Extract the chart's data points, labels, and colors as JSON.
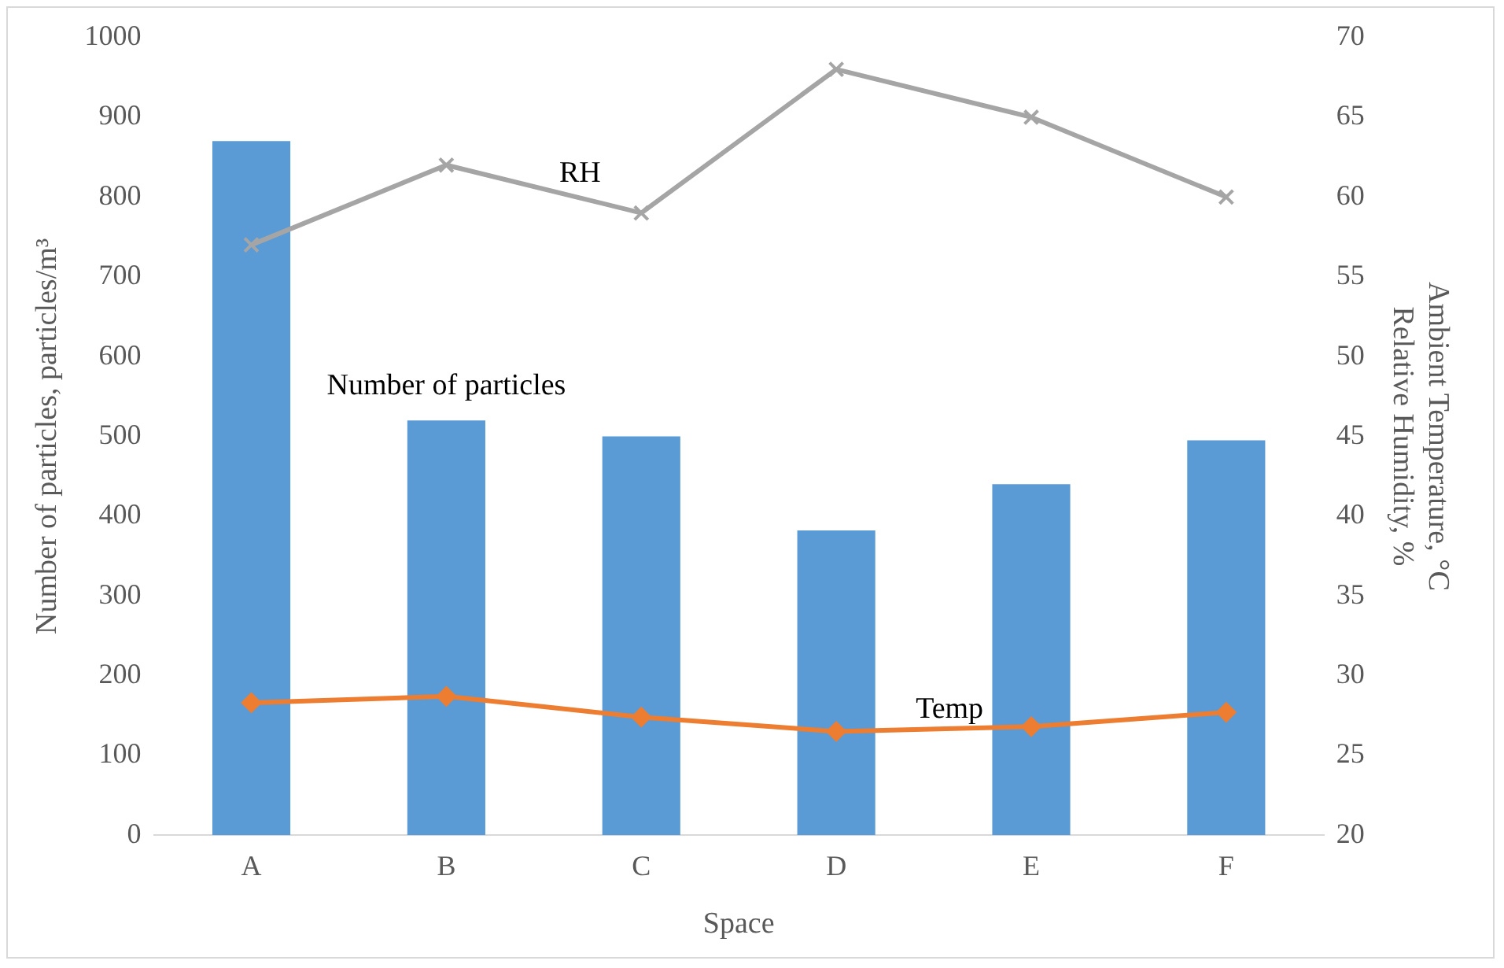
{
  "chart_data": {
    "type": "bar",
    "xlabel": "Space",
    "ylabel": "Number of particles, particles/m³",
    "y2label": "Ambient Temperature, °C\nRelative Humidity, %",
    "categories": [
      "A",
      "B",
      "C",
      "D",
      "E",
      "F"
    ],
    "series": [
      {
        "name": "Number of particles",
        "color": "#5b9bd5",
        "values": [
          870,
          520,
          500,
          382,
          440,
          495
        ]
      },
      {
        "name": "Temp",
        "type": "line",
        "axis": "y2",
        "color": "#ed7d31",
        "marker": "diamond",
        "values": [
          28.3,
          28.7,
          27.4,
          26.5,
          26.8,
          27.7
        ]
      },
      {
        "name": "RH",
        "type": "line",
        "axis": "y2",
        "color": "#a5a5a5",
        "marker": "cross",
        "values": [
          57,
          62,
          59,
          68,
          65,
          60
        ]
      }
    ],
    "ylim": [
      0,
      1000
    ],
    "yticks": [
      0,
      100,
      200,
      300,
      400,
      500,
      600,
      700,
      800,
      900,
      1000
    ],
    "y2lim": [
      20,
      70
    ],
    "y2ticks": [
      20,
      25,
      30,
      35,
      40,
      45,
      50,
      55,
      60,
      65,
      70
    ],
    "grid": false,
    "legend": false
  }
}
